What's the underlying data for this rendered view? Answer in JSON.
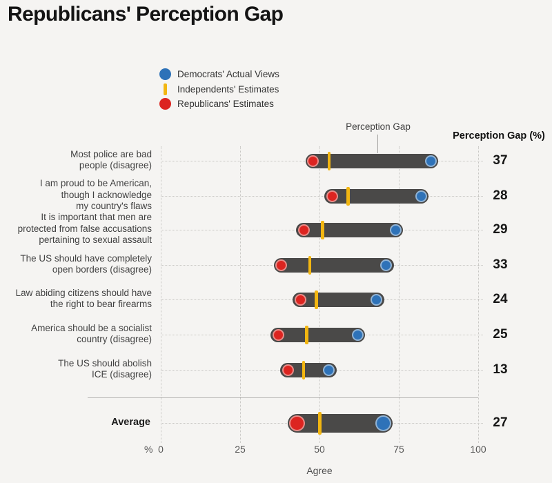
{
  "title": "Republicans' Perception Gap",
  "annotation_label": "Perception Gap",
  "gap_column_header": "Perception Gap (%)",
  "legend": [
    {
      "label": "Democrats' Actual Views",
      "marker": "circle",
      "color": "#2e72b8"
    },
    {
      "label": "Independents' Estimates",
      "marker": "bar",
      "color": "#f2b611"
    },
    {
      "label": "Republicans' Estimates",
      "marker": "circle",
      "color": "#dc2420"
    }
  ],
  "axis": {
    "unit": "%",
    "xlabel": "Agree",
    "ticks": [
      0,
      25,
      50,
      75,
      100
    ]
  },
  "colors": {
    "background": "#f5f4f2",
    "bar": "#4a4948",
    "democrat": "#2e72b8",
    "independent": "#f2b611",
    "republican": "#dc2420",
    "grid": "#c7c6c3",
    "text": "#414141"
  },
  "rows": [
    {
      "label_lines": [
        "Most police are bad",
        "people (disagree)"
      ],
      "democrats_actual": 85,
      "independents_estimate": 53,
      "republicans_estimate": 48,
      "gap": 37
    },
    {
      "label_lines": [
        "I am proud to be American,",
        "though I acknowledge",
        "my country's flaws"
      ],
      "democrats_actual": 82,
      "independents_estimate": 59,
      "republicans_estimate": 54,
      "gap": 28
    },
    {
      "label_lines": [
        "It is important that men are",
        "protected from false accusations",
        "pertaining to sexual assault"
      ],
      "democrats_actual": 74,
      "independents_estimate": 51,
      "republicans_estimate": 45,
      "gap": 29
    },
    {
      "label_lines": [
        "The US should have completely",
        "open borders (disagree)"
      ],
      "democrats_actual": 71,
      "independents_estimate": 47,
      "republicans_estimate": 38,
      "gap": 33
    },
    {
      "label_lines": [
        "Law abiding citizens should have",
        "the right to bear firearms"
      ],
      "democrats_actual": 68,
      "independents_estimate": 49,
      "republicans_estimate": 44,
      "gap": 24
    },
    {
      "label_lines": [
        "America should be a socialist",
        "country (disagree)"
      ],
      "democrats_actual": 62,
      "independents_estimate": 46,
      "republicans_estimate": 37,
      "gap": 25
    },
    {
      "label_lines": [
        "The US should abolish",
        "ICE (disagree)"
      ],
      "democrats_actual": 53,
      "independents_estimate": 45,
      "republicans_estimate": 40,
      "gap": 13
    }
  ],
  "average_row": {
    "label": "Average",
    "democrats_actual": 70,
    "independents_estimate": 50,
    "republicans_estimate": 43,
    "gap": 27
  },
  "chart_data": {
    "type": "dumbbell",
    "title": "Republicans' Perception Gap",
    "categories": [
      "Most police are bad people (disagree)",
      "I am proud to be American, though I acknowledge my country's flaws",
      "It is important that men are protected from false accusations pertaining to sexual assault",
      "The US should have completely open borders (disagree)",
      "Law abiding citizens should have the right to bear firearms",
      "America should be a socialist country (disagree)",
      "The US should abolish ICE (disagree)",
      "Average"
    ],
    "series": [
      {
        "name": "Democrats' Actual Views",
        "values": [
          85,
          82,
          74,
          71,
          68,
          62,
          53,
          70
        ]
      },
      {
        "name": "Independents' Estimates",
        "values": [
          53,
          59,
          51,
          47,
          49,
          46,
          45,
          50
        ]
      },
      {
        "name": "Republicans' Estimates",
        "values": [
          48,
          54,
          45,
          38,
          44,
          37,
          40,
          43
        ]
      }
    ],
    "perception_gap": [
      37,
      28,
      29,
      33,
      24,
      25,
      13,
      27
    ],
    "xlabel": "Agree",
    "unit": "%",
    "xlim": [
      0,
      100
    ],
    "grid": "vertical dotted lines at ticks",
    "legend_position": "top-left"
  }
}
